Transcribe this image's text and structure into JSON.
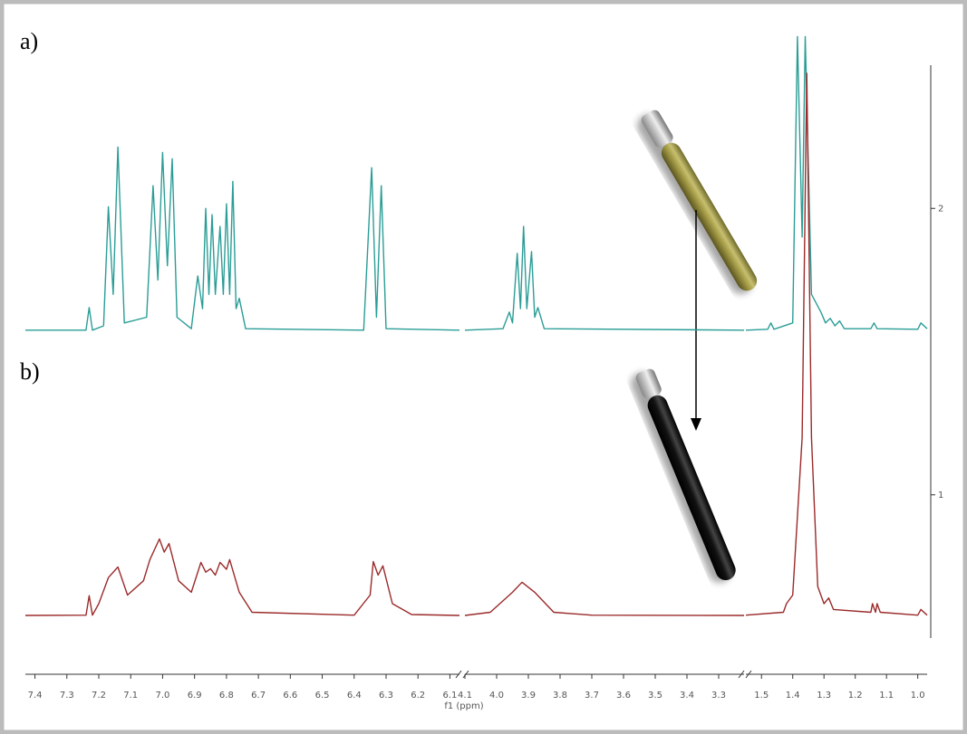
{
  "chart_data": {
    "type": "nmr",
    "x_label": "f1 (ppm)",
    "panel_labels": [
      "a)",
      "b)"
    ],
    "x_segments": [
      {
        "xlim": [
          7.43,
          6.07
        ],
        "xticks": [
          7.4,
          7.3,
          7.2,
          7.1,
          {
            "value": 7,
            "label": "7.0"
          },
          6.9,
          6.8,
          6.7,
          6.6,
          6.5,
          6.4,
          6.3,
          6.2,
          6.1
        ]
      },
      {
        "xlim": [
          4.1,
          3.22
        ],
        "xticks": [
          4.1,
          {
            "value": 4,
            "label": "4.0"
          },
          3.9,
          3.8,
          3.7,
          3.6,
          3.5,
          3.4,
          3.3
        ]
      },
      {
        "xlim": [
          1.55,
          0.97
        ],
        "xticks": [
          1.5,
          1.4,
          1.3,
          1.2,
          1.1,
          {
            "value": 1,
            "label": "1.0"
          }
        ]
      }
    ],
    "ylim": [
      0.5,
      2.5
    ],
    "yticks": [
      1,
      2
    ],
    "series": [
      {
        "color": "#2a9d96",
        "x": [
          7.43,
          7.24,
          7.23,
          7.22,
          7.185,
          7.17,
          7.155,
          7.14,
          7.12,
          7.05,
          7.03,
          7.015,
          7.0,
          6.985,
          6.97,
          6.955,
          6.91,
          6.89,
          6.875,
          6.865,
          6.855,
          6.845,
          6.835,
          6.82,
          6.81,
          6.8,
          6.79,
          6.78,
          6.77,
          6.76,
          6.74,
          6.37,
          6.345,
          6.33,
          6.315,
          6.3,
          6.07,
          null,
          4.1,
          3.98,
          3.96,
          3.95,
          3.935,
          3.925,
          3.915,
          3.905,
          3.89,
          3.88,
          3.87,
          3.85,
          3.22,
          null,
          1.55,
          1.48,
          1.47,
          1.46,
          1.4,
          1.385,
          1.37,
          1.36,
          1.34,
          1.31,
          1.295,
          1.28,
          1.265,
          1.25,
          1.235,
          1.15,
          1.14,
          1.13,
          1.0,
          0.99,
          0.97
        ],
        "values": [
          1.575,
          1.575,
          1.654,
          1.575,
          1.59,
          2.006,
          1.7,
          2.214,
          1.6,
          1.62,
          2.079,
          1.75,
          2.195,
          1.8,
          2.173,
          1.62,
          1.58,
          1.764,
          1.65,
          2.0,
          1.7,
          1.978,
          1.7,
          1.937,
          1.7,
          2.016,
          1.7,
          2.094,
          1.65,
          1.686,
          1.58,
          1.575,
          2.142,
          1.62,
          2.079,
          1.58,
          1.575,
          null,
          1.575,
          1.58,
          1.638,
          1.6,
          1.843,
          1.65,
          1.937,
          1.65,
          1.849,
          1.62,
          1.654,
          1.58,
          1.575,
          null,
          1.575,
          1.578,
          1.6,
          1.578,
          1.6,
          2.6,
          1.9,
          2.6,
          1.7,
          1.638,
          1.6,
          1.616,
          1.59,
          1.607,
          1.58,
          1.58,
          1.6,
          1.58,
          1.578,
          1.6,
          1.58
        ]
      },
      {
        "color": "#9b2a2a",
        "x": [
          7.43,
          7.24,
          7.23,
          7.22,
          7.2,
          7.17,
          7.14,
          7.11,
          7.06,
          7.04,
          7.01,
          6.995,
          6.98,
          6.95,
          6.91,
          6.88,
          6.865,
          6.85,
          6.835,
          6.82,
          6.8,
          6.79,
          6.76,
          6.72,
          6.4,
          6.35,
          6.34,
          6.325,
          6.31,
          6.28,
          6.22,
          6.07,
          null,
          4.1,
          4.02,
          3.95,
          3.92,
          3.88,
          3.82,
          3.7,
          3.22,
          null,
          1.55,
          1.43,
          1.42,
          1.4,
          1.37,
          1.355,
          1.34,
          1.32,
          1.3,
          1.285,
          1.27,
          1.15,
          1.145,
          1.135,
          1.13,
          1.12,
          1.0,
          0.99,
          0.97
        ],
        "values": [
          0.579,
          0.58,
          0.648,
          0.58,
          0.62,
          0.711,
          0.748,
          0.65,
          0.7,
          0.774,
          0.846,
          0.8,
          0.83,
          0.7,
          0.66,
          0.764,
          0.73,
          0.742,
          0.72,
          0.764,
          0.74,
          0.774,
          0.66,
          0.59,
          0.58,
          0.65,
          0.767,
          0.72,
          0.752,
          0.62,
          0.582,
          0.579,
          null,
          0.579,
          0.59,
          0.66,
          0.695,
          0.66,
          0.59,
          0.58,
          0.579,
          null,
          0.58,
          0.59,
          0.62,
          0.65,
          1.2,
          2.472,
          1.2,
          0.68,
          0.62,
          0.64,
          0.6,
          0.59,
          0.62,
          0.59,
          0.62,
          0.59,
          0.58,
          0.6,
          0.58
        ]
      }
    ]
  }
}
